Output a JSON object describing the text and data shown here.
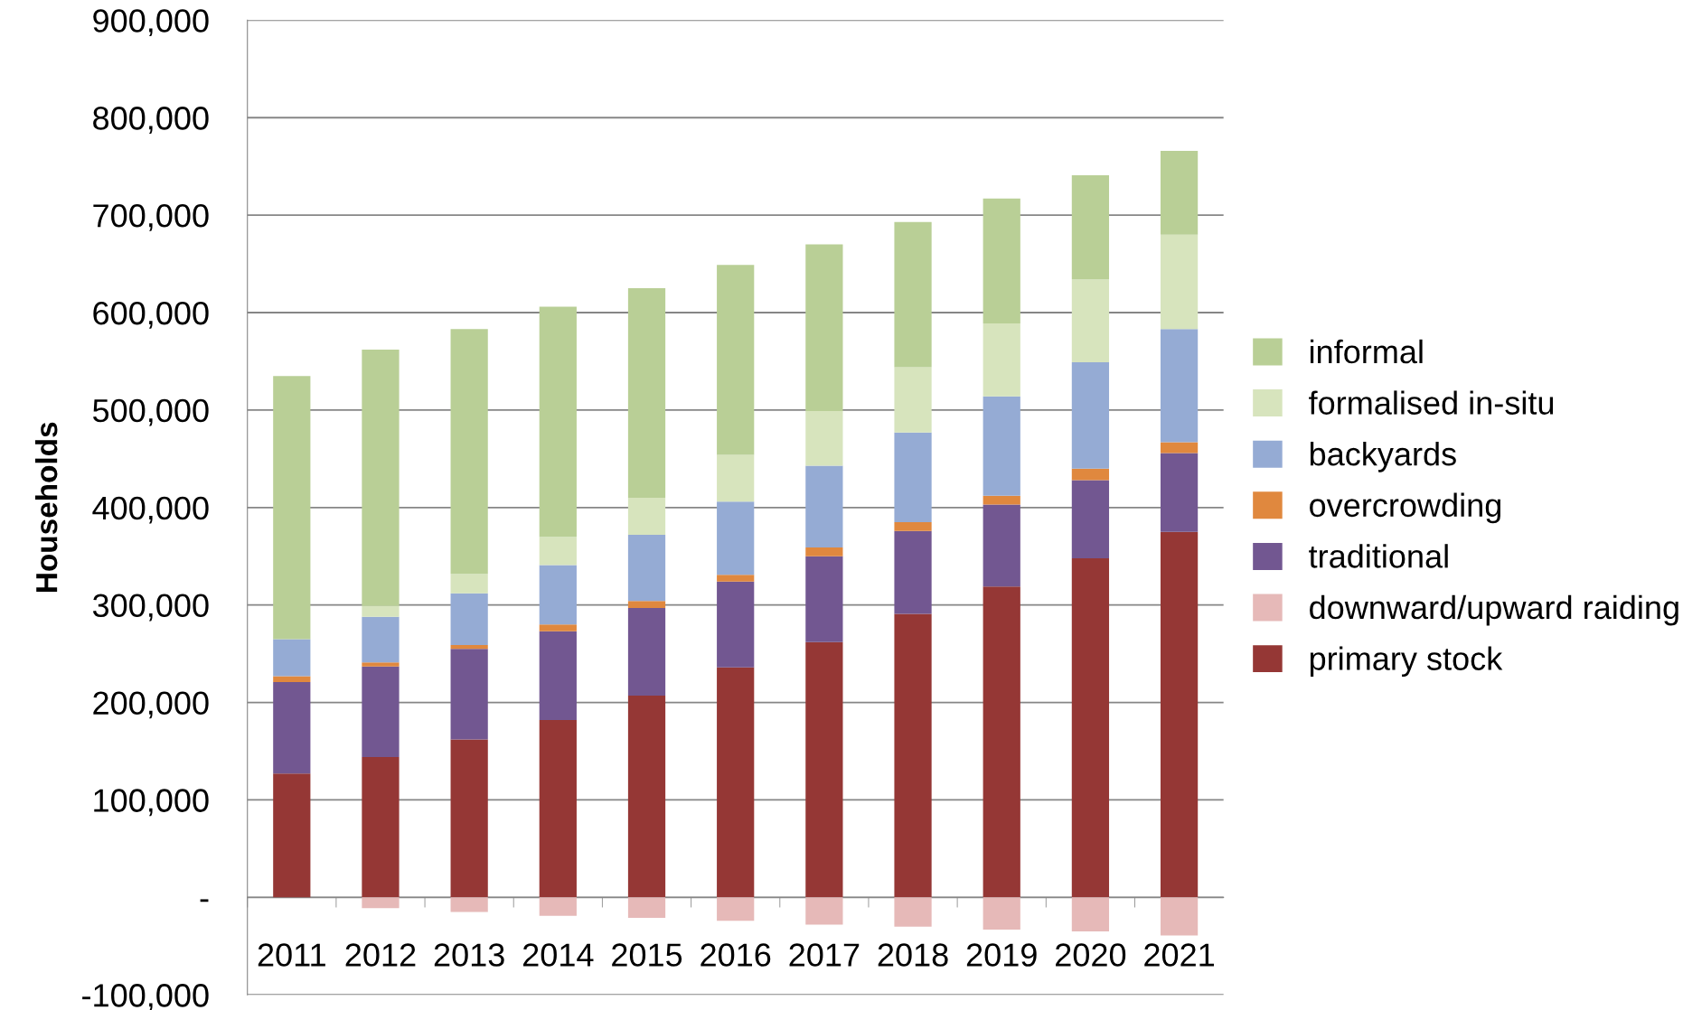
{
  "chart_data": {
    "type": "bar",
    "stacked": true,
    "ylabel": "Households",
    "categories": [
      "2011",
      "2012",
      "2013",
      "2014",
      "2015",
      "2016",
      "2017",
      "2018",
      "2019",
      "2020",
      "2021"
    ],
    "series": [
      {
        "name": "primary stock",
        "color": "#953735",
        "values": [
          127000,
          144000,
          162000,
          182000,
          207000,
          236000,
          262000,
          291000,
          319000,
          348000,
          375000
        ]
      },
      {
        "name": "downward/upward raiding",
        "color": "#e6b9b8",
        "values": [
          0,
          -11000,
          -15000,
          -19000,
          -21000,
          -24000,
          -28000,
          -30000,
          -33000,
          -35000,
          -39000
        ]
      },
      {
        "name": "traditional",
        "color": "#725791",
        "values": [
          94000,
          93000,
          93000,
          91000,
          90000,
          88000,
          88000,
          85000,
          84000,
          80000,
          81000
        ]
      },
      {
        "name": "overcrowding",
        "color": "#e0883e",
        "values": [
          6000,
          4000,
          4000,
          7000,
          7000,
          7000,
          9000,
          9000,
          9000,
          12000,
          11000
        ]
      },
      {
        "name": "backyards",
        "color": "#95abd4",
        "values": [
          38000,
          47000,
          53000,
          61000,
          68000,
          75000,
          84000,
          92000,
          102000,
          109000,
          116000
        ]
      },
      {
        "name": "formalised in-situ",
        "color": "#d7e4bd",
        "values": [
          0,
          11000,
          20000,
          29000,
          38000,
          48000,
          56000,
          67000,
          75000,
          85000,
          97000
        ]
      },
      {
        "name": "informal",
        "color": "#b9cf96",
        "values": [
          270000,
          263000,
          251000,
          236000,
          215000,
          195000,
          171000,
          149000,
          128000,
          107000,
          86000
        ]
      }
    ],
    "ylim": [
      -100000,
      900000
    ],
    "yticks": [
      {
        "value": -100000,
        "label": "-100,000"
      },
      {
        "value": 0,
        "label": "-"
      },
      {
        "value": 100000,
        "label": "100,000"
      },
      {
        "value": 200000,
        "label": "200,000"
      },
      {
        "value": 300000,
        "label": "300,000"
      },
      {
        "value": 400000,
        "label": "400,000"
      },
      {
        "value": 500000,
        "label": "500,000"
      },
      {
        "value": 600000,
        "label": "600,000"
      },
      {
        "value": 700000,
        "label": "700,000"
      },
      {
        "value": 800000,
        "label": "800,000"
      },
      {
        "value": 900000,
        "label": "900,000"
      }
    ],
    "grid": "y",
    "legend": "right"
  }
}
